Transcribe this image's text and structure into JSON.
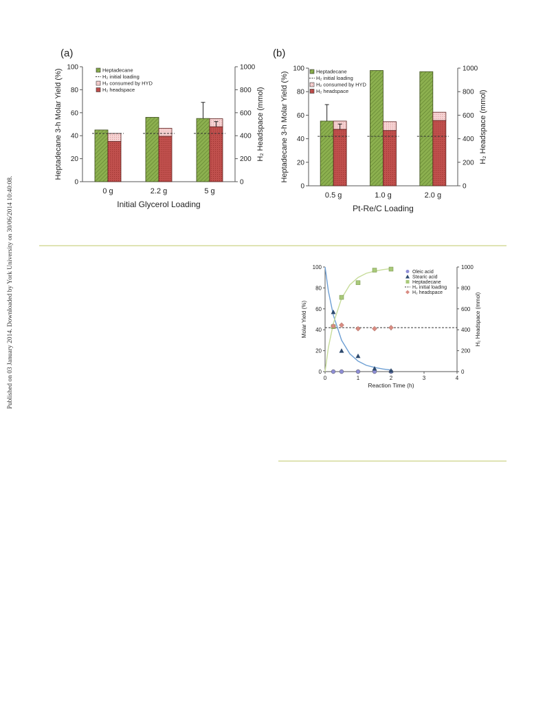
{
  "sidebar": {
    "text": "Published on 03 January 2014. Downloaded by York University on 30/06/2014 10:40:08."
  },
  "colors": {
    "heptadecane": "#8cb04f",
    "h2_consumed": "#f6d3d3",
    "h2_headspace": "#c0504d",
    "dashed": "#333333",
    "oleic": "#8e8ed6",
    "stearic": "#2e4a6e",
    "fit_heptadecane": "#c7dc9a",
    "fit_stearic": "#6d9fd4",
    "rule": "#dfe3b3"
  },
  "chart_data": [
    {
      "type": "bar",
      "panel_label": "(a)",
      "xlabel": "Initial Glycerol Loading",
      "ylabel": "Heptadecane 3-h Molar Yield (%)",
      "y2label": "H₂ Headspace (mmol)",
      "categories": [
        "0 g",
        "2.2 g",
        "5 g"
      ],
      "ylim": [
        0,
        100
      ],
      "y2lim": [
        0,
        1000
      ],
      "yticks": [
        "0",
        "20",
        "40",
        "60",
        "80",
        "100"
      ],
      "y2ticks": [
        "0",
        "200",
        "400",
        "600",
        "800",
        "1000"
      ],
      "legend": [
        "Heptadecane",
        "H₂ initial loading",
        "H₂ consumed by HYD",
        "H₂ headspace"
      ],
      "series": [
        {
          "name": "Heptadecane",
          "axis": "left",
          "values": [
            45,
            56,
            55
          ],
          "error_plus": [
            0,
            0,
            14
          ]
        },
        {
          "name": "H₂ headspace",
          "axis": "right",
          "values": [
            350,
            395,
            478
          ],
          "error_plus": [
            0,
            0,
            45
          ]
        },
        {
          "name": "H₂ consumed by HYD",
          "axis": "right",
          "stacked_on": "H₂ headspace",
          "values": [
            70,
            70,
            70
          ]
        },
        {
          "name": "H₂ initial loading",
          "axis": "right",
          "values": [
            420,
            420,
            420
          ]
        }
      ]
    },
    {
      "type": "bar",
      "panel_label": "(b)",
      "xlabel": "Pt-Re/C Loading",
      "ylabel": "Heptadecane 3-h Molar Yield (%)",
      "y2label": "H₂ Headspace (mmol)",
      "categories": [
        "0.5 g",
        "1.0 g",
        "2.0 g"
      ],
      "ylim": [
        0,
        100
      ],
      "y2lim": [
        0,
        1000
      ],
      "yticks": [
        "0",
        "20",
        "40",
        "60",
        "80",
        "100"
      ],
      "y2ticks": [
        "0",
        "200",
        "400",
        "600",
        "800",
        "1000"
      ],
      "legend": [
        "Heptadecane",
        "H₂ initial loading",
        "H₂ consumed by HYD",
        "H₂ headspace"
      ],
      "series": [
        {
          "name": "Heptadecane",
          "axis": "left",
          "values": [
            55,
            98,
            97
          ],
          "error_plus": [
            14,
            0,
            0
          ]
        },
        {
          "name": "H₂ headspace",
          "axis": "right",
          "values": [
            480,
            470,
            555
          ],
          "error_plus": [
            45,
            0,
            0
          ]
        },
        {
          "name": "H₂ consumed by HYD",
          "axis": "right",
          "stacked_on": "H₂ headspace",
          "values": [
            70,
            75,
            70
          ]
        },
        {
          "name": "H₂ initial loading",
          "axis": "right",
          "values": [
            420,
            420,
            420
          ]
        }
      ]
    },
    {
      "type": "scatter",
      "xlabel": "Reaction Time (h)",
      "ylabel": "Molar Yield (%)",
      "y2label": "H₂ Headspace (mmol)",
      "xlim": [
        0,
        4
      ],
      "ylim": [
        0,
        100
      ],
      "y2lim": [
        0,
        1000
      ],
      "xticks": [
        "0",
        "1",
        "2",
        "3",
        "4"
      ],
      "yticks": [
        "0",
        "20",
        "40",
        "60",
        "80",
        "100"
      ],
      "y2ticks": [
        "0",
        "200",
        "400",
        "600",
        "800",
        "1000"
      ],
      "legend": [
        "Oleic acid",
        "Stearic acid",
        "Heptadecane",
        "H₂ initial loading",
        "H₂ headspace"
      ],
      "series": [
        {
          "name": "Oleic acid",
          "marker": "circle",
          "axis": "left",
          "x": [
            0.25,
            0.5,
            1.0,
            1.5,
            2.0
          ],
          "y": [
            0,
            0,
            0,
            0,
            0
          ]
        },
        {
          "name": "Stearic acid",
          "marker": "triangle",
          "axis": "left",
          "x": [
            0.25,
            0.5,
            1.0,
            1.5,
            2.0
          ],
          "y": [
            57,
            20,
            15,
            3,
            1
          ]
        },
        {
          "name": "Heptadecane",
          "marker": "square",
          "axis": "left",
          "x": [
            0.25,
            0.5,
            1.0,
            1.5,
            2.0
          ],
          "y": [
            43,
            71,
            85,
            97,
            98
          ]
        },
        {
          "name": "H₂ headspace",
          "marker": "diamond",
          "axis": "right",
          "x": [
            0.25,
            0.5,
            1.0,
            1.5,
            2.0
          ],
          "y": [
            435,
            445,
            410,
            410,
            420
          ],
          "error": [
            0,
            0,
            0,
            0,
            25
          ]
        },
        {
          "name": "H₂ initial loading",
          "axis": "right",
          "line": "dashed",
          "y": [
            420
          ]
        }
      ],
      "fits": [
        {
          "name": "Stearic acid fit",
          "axis": "left",
          "x": [
            0,
            0.1,
            0.25,
            0.5,
            0.75,
            1.0,
            1.25,
            1.5,
            1.75,
            2.0
          ],
          "y": [
            100,
            77,
            54,
            30,
            17,
            10,
            6,
            4,
            2.5,
            1.5
          ]
        },
        {
          "name": "Heptadecane fit",
          "axis": "left",
          "x": [
            0,
            0.1,
            0.25,
            0.5,
            0.75,
            1.0,
            1.25,
            1.5,
            1.75,
            2.0
          ],
          "y": [
            0,
            23,
            46,
            70,
            83,
            90,
            94,
            96,
            97.5,
            98.5
          ]
        }
      ]
    }
  ]
}
